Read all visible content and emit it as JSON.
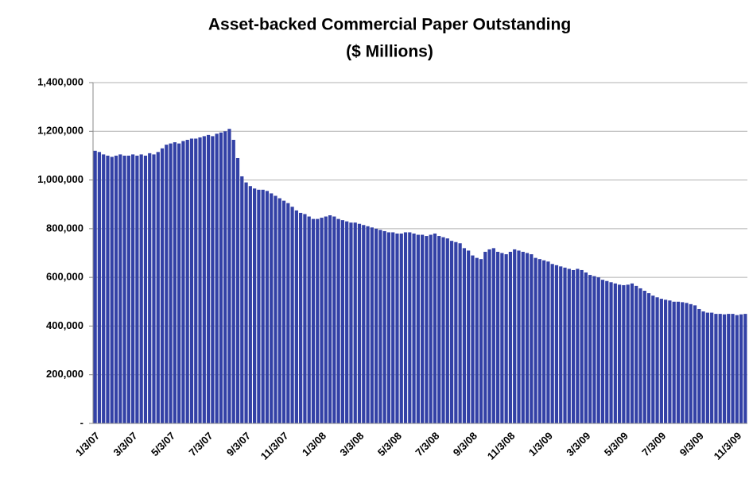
{
  "chart_data": {
    "type": "bar",
    "title": "Asset-backed Commercial Paper Outstanding",
    "subtitle": "($ Millions)",
    "categories": [
      "1/3/07",
      null,
      null,
      null,
      null,
      null,
      null,
      null,
      null,
      "3/3/07",
      null,
      null,
      null,
      null,
      null,
      null,
      null,
      null,
      "5/3/07",
      null,
      null,
      null,
      null,
      null,
      null,
      null,
      null,
      "7/3/07",
      null,
      null,
      null,
      null,
      null,
      null,
      null,
      null,
      "9/3/07",
      null,
      null,
      null,
      null,
      null,
      null,
      null,
      null,
      "11/3/07",
      null,
      null,
      null,
      null,
      null,
      null,
      null,
      null,
      "1/3/08",
      null,
      null,
      null,
      null,
      null,
      null,
      null,
      null,
      "3/3/08",
      null,
      null,
      null,
      null,
      null,
      null,
      null,
      null,
      "5/3/08",
      null,
      null,
      null,
      null,
      null,
      null,
      null,
      null,
      "7/3/08",
      null,
      null,
      null,
      null,
      null,
      null,
      null,
      null,
      "9/3/08",
      null,
      null,
      null,
      null,
      null,
      null,
      null,
      null,
      "11/3/08",
      null,
      null,
      null,
      null,
      null,
      null,
      null,
      null,
      "1/3/09",
      null,
      null,
      null,
      null,
      null,
      null,
      null,
      null,
      "3/3/09",
      null,
      null,
      null,
      null,
      null,
      null,
      null,
      null,
      "5/3/09",
      null,
      null,
      null,
      null,
      null,
      null,
      null,
      null,
      "7/3/09",
      null,
      null,
      null,
      null,
      null,
      null,
      null,
      null,
      "9/3/09",
      null,
      null,
      null,
      null,
      null,
      null,
      null,
      null,
      "11/3/09",
      null,
      null
    ],
    "values": [
      1120000,
      1115000,
      1105000,
      1100000,
      1095000,
      1100000,
      1105000,
      1100000,
      1100000,
      1105000,
      1100000,
      1105000,
      1100000,
      1110000,
      1105000,
      1115000,
      1130000,
      1145000,
      1150000,
      1155000,
      1150000,
      1160000,
      1165000,
      1170000,
      1170000,
      1175000,
      1180000,
      1185000,
      1180000,
      1190000,
      1195000,
      1200000,
      1210000,
      1165000,
      1090000,
      1015000,
      990000,
      975000,
      965000,
      960000,
      960000,
      955000,
      945000,
      935000,
      925000,
      915000,
      905000,
      890000,
      875000,
      865000,
      860000,
      850000,
      840000,
      840000,
      845000,
      850000,
      855000,
      850000,
      840000,
      835000,
      830000,
      825000,
      825000,
      820000,
      815000,
      810000,
      805000,
      800000,
      795000,
      790000,
      785000,
      785000,
      780000,
      780000,
      785000,
      785000,
      780000,
      775000,
      775000,
      770000,
      775000,
      780000,
      770000,
      765000,
      760000,
      750000,
      745000,
      740000,
      720000,
      710000,
      690000,
      680000,
      675000,
      705000,
      715000,
      720000,
      705000,
      700000,
      695000,
      705000,
      715000,
      710000,
      705000,
      700000,
      695000,
      680000,
      675000,
      670000,
      665000,
      655000,
      650000,
      645000,
      640000,
      635000,
      630000,
      635000,
      630000,
      620000,
      610000,
      605000,
      600000,
      590000,
      585000,
      580000,
      575000,
      570000,
      568000,
      570000,
      575000,
      565000,
      555000,
      545000,
      535000,
      525000,
      518000,
      512000,
      508000,
      505000,
      500000,
      500000,
      498000,
      495000,
      490000,
      485000,
      470000,
      460000,
      455000,
      455000,
      450000,
      450000,
      448000,
      450000,
      450000,
      445000,
      448000,
      450000
    ],
    "color": "#3341a6",
    "ylim": [
      0,
      1400000
    ],
    "yticks": [
      {
        "value": 0,
        "label": "-"
      },
      {
        "value": 200000,
        "label": "200,000"
      },
      {
        "value": 400000,
        "label": "400,000"
      },
      {
        "value": 600000,
        "label": "600,000"
      },
      {
        "value": 800000,
        "label": "800,000"
      },
      {
        "value": 1000000,
        "label": "1,000,000"
      },
      {
        "value": 1200000,
        "label": "1,200,000"
      },
      {
        "value": 1400000,
        "label": "1,400,000"
      }
    ],
    "grid": true
  }
}
